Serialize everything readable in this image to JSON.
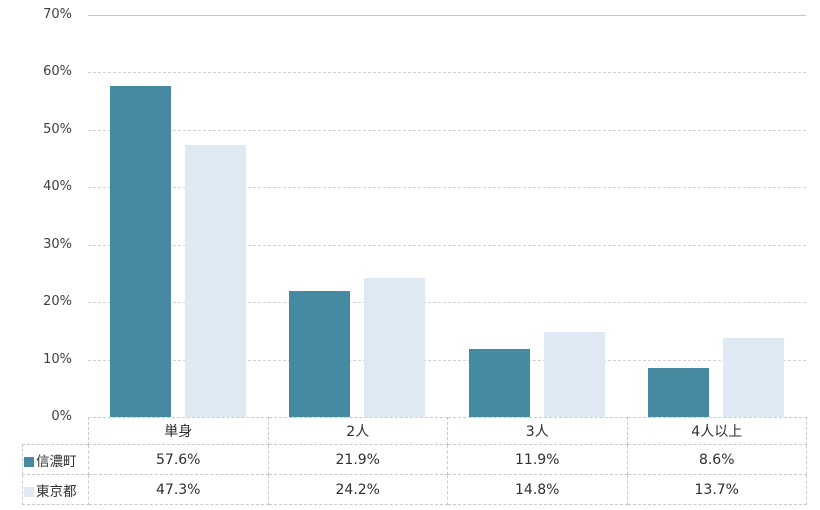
{
  "chart_data": {
    "type": "bar",
    "title": "",
    "xlabel": "",
    "ylabel": "",
    "categories": [
      "単身",
      "2人",
      "3人",
      "4人以上"
    ],
    "series": [
      {
        "name": "信濃町",
        "color": "#458AA0",
        "values": [
          57.6,
          21.9,
          11.9,
          8.6
        ]
      },
      {
        "name": "東京都",
        "color": "#DEE9F4",
        "values": [
          47.3,
          24.2,
          14.8,
          13.7
        ]
      }
    ],
    "value_suffix": "%",
    "ylim": [
      0,
      70
    ],
    "ytick_step": 10,
    "ytick_labels": [
      "0%",
      "10%",
      "20%",
      "30%",
      "40%",
      "50%",
      "60%",
      "70%"
    ],
    "grid": true,
    "gridline_color": "#d2d2d2",
    "top_border_color": "#c6c6c6",
    "table_border_color": "#c9c9c9",
    "legend_position": "table-row-headers",
    "table_values": [
      [
        "57.6%",
        "21.9%",
        "11.9%",
        "8.6%"
      ],
      [
        "47.3%",
        "24.2%",
        "14.8%",
        "13.7%"
      ]
    ]
  }
}
